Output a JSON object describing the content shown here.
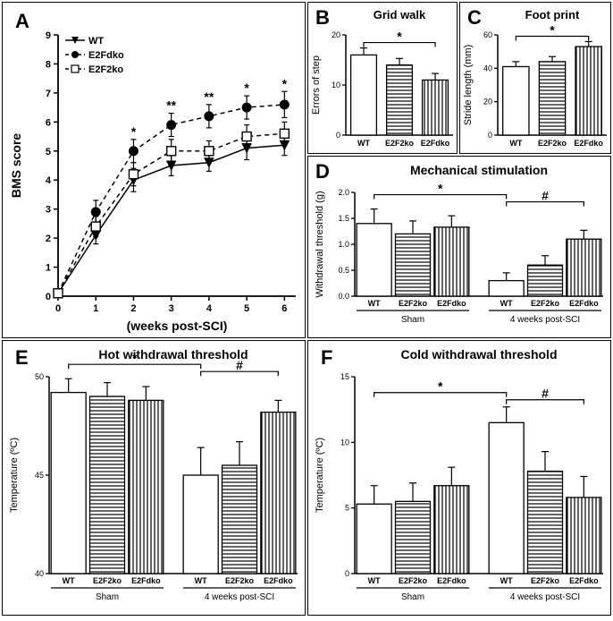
{
  "panelA": {
    "label": "A",
    "type": "line",
    "title": "",
    "xlabel": "(weeks post-SCI)",
    "ylabel": "BMS score",
    "xlim": [
      0,
      6.3
    ],
    "ylim": [
      0,
      9
    ],
    "xtick_step": 1,
    "ytick_step": 1,
    "xticks": [
      "0",
      "1",
      "2",
      "3",
      "4",
      "5",
      "6"
    ],
    "yticks": [
      "0",
      "1",
      "2",
      "3",
      "4",
      "5",
      "6",
      "7",
      "8",
      "9"
    ],
    "label_fontsize": 14,
    "tick_fontsize": 11,
    "background_color": "#ffffff",
    "series": [
      {
        "name": "WT",
        "marker": "triangle-down",
        "dash": "solid",
        "color": "#000000",
        "points": [
          [
            0,
            0.1
          ],
          [
            1,
            2.1
          ],
          [
            2,
            4.0
          ],
          [
            3,
            4.5
          ],
          [
            4,
            4.6
          ],
          [
            5,
            5.1
          ],
          [
            6,
            5.2
          ]
        ],
        "err": [
          0,
          0.3,
          0.4,
          0.35,
          0.3,
          0.4,
          0.35
        ]
      },
      {
        "name": "E2Fdko",
        "marker": "circle",
        "dash": "dash",
        "color": "#000000",
        "points": [
          [
            0,
            0.1
          ],
          [
            1,
            2.9
          ],
          [
            2,
            5.0
          ],
          [
            3,
            5.9
          ],
          [
            4,
            6.2
          ],
          [
            5,
            6.5
          ],
          [
            6,
            6.6
          ]
        ],
        "err": [
          0,
          0.4,
          0.4,
          0.4,
          0.4,
          0.4,
          0.45
        ]
      },
      {
        "name": "E2F2ko",
        "marker": "square-open",
        "dash": "dash",
        "color": "#000000",
        "points": [
          [
            0,
            0.1
          ],
          [
            1,
            2.4
          ],
          [
            2,
            4.2
          ],
          [
            3,
            5.0
          ],
          [
            4,
            5.0
          ],
          [
            5,
            5.5
          ],
          [
            6,
            5.6
          ]
        ],
        "err": [
          0,
          0.35,
          0.4,
          0.4,
          0.35,
          0.4,
          0.4
        ]
      }
    ],
    "legend": {
      "items": [
        "WT",
        "E2Fdko",
        "E2F2ko"
      ],
      "fontsize": 11,
      "pos": "top-left-inside"
    },
    "annotations": [
      {
        "x": 2,
        "text": "*"
      },
      {
        "x": 3,
        "text": "**"
      },
      {
        "x": 4,
        "text": "**"
      },
      {
        "x": 5,
        "text": "*"
      },
      {
        "x": 6,
        "text": "*"
      }
    ],
    "line_width": 1.5,
    "marker_size": 5
  },
  "panelB": {
    "label": "B",
    "type": "bar",
    "title": "Grid walk",
    "ylabel": "Errors of step",
    "ylim": [
      0,
      20
    ],
    "ytick_step": 10,
    "yticks": [
      "0",
      "10",
      "20"
    ],
    "categories": [
      "WT",
      "E2F2ko",
      "E2Fdko"
    ],
    "values": [
      16,
      14,
      11
    ],
    "err": [
      1.4,
      1.3,
      1.3
    ],
    "fills": [
      "white",
      "hstripe",
      "vstripe"
    ],
    "bar_border": "#000000",
    "bracket": {
      "from": 0,
      "to": 2,
      "text": "*"
    },
    "title_fontsize": 13,
    "label_fontsize": 11,
    "tick_fontsize": 9
  },
  "panelC": {
    "label": "C",
    "type": "bar",
    "title": "Foot print",
    "ylabel": "Stride length (mm)",
    "ylim": [
      0,
      60
    ],
    "ytick_step": 20,
    "yticks": [
      "0",
      "20",
      "40",
      "60"
    ],
    "categories": [
      "WT",
      "E2F2ko",
      "E2Fdko"
    ],
    "values": [
      41,
      44,
      53
    ],
    "err": [
      3,
      3,
      3
    ],
    "fills": [
      "white",
      "hstripe",
      "vstripe"
    ],
    "bar_border": "#000000",
    "bracket": {
      "from": 0,
      "to": 2,
      "text": "*"
    },
    "title_fontsize": 13,
    "label_fontsize": 11,
    "tick_fontsize": 9
  },
  "panelD": {
    "label": "D",
    "type": "grouped-bar",
    "title": "Mechanical stimulation",
    "ylabel": "Withdrawal threshold (g)",
    "ylim": [
      0,
      2.0
    ],
    "ytick_step": 0.5,
    "yticks": [
      "0.0",
      "0.5",
      "1.0",
      "1.5",
      "2.0"
    ],
    "groups": [
      "Sham",
      "4 weeks post-SCI"
    ],
    "categories": [
      "WT",
      "E2F2ko",
      "E2Fdko"
    ],
    "values": [
      [
        1.4,
        1.2,
        1.33
      ],
      [
        0.3,
        0.6,
        1.1
      ]
    ],
    "err": [
      [
        0.28,
        0.25,
        0.22
      ],
      [
        0.15,
        0.18,
        0.17
      ]
    ],
    "fills": [
      "white",
      "hstripe",
      "vstripe"
    ],
    "bar_border": "#000000",
    "brackets": [
      {
        "fromGroup": 0,
        "fromCat": 0,
        "toGroup": 1,
        "toCat": 0,
        "text": "*"
      },
      {
        "fromGroup": 1,
        "fromCat": 0,
        "toGroup": 1,
        "toCat": 2,
        "text": "#"
      }
    ],
    "title_fontsize": 14,
    "label_fontsize": 11,
    "tick_fontsize": 9
  },
  "panelE": {
    "label": "E",
    "type": "grouped-bar",
    "title": "Hot withdrawal threshold",
    "ylabel": "Temperature (ºC)",
    "ylim": [
      40,
      50
    ],
    "ytick_step": 5,
    "yticks": [
      "40",
      "45",
      "50"
    ],
    "groups": [
      "Sham",
      "4 weeks post-SCI"
    ],
    "categories": [
      "WT",
      "E2F2ko",
      "E2Fdko"
    ],
    "values": [
      [
        49.2,
        49.0,
        48.8
      ],
      [
        45.0,
        45.5,
        48.2
      ]
    ],
    "err": [
      [
        0.7,
        0.7,
        0.7
      ],
      [
        1.4,
        1.2,
        0.6
      ]
    ],
    "fills": [
      "white",
      "hstripe",
      "vstripe"
    ],
    "bar_border": "#000000",
    "brackets": [
      {
        "fromGroup": 0,
        "fromCat": 0,
        "toGroup": 1,
        "toCat": 0,
        "text": "*"
      },
      {
        "fromGroup": 1,
        "fromCat": 0,
        "toGroup": 1,
        "toCat": 2,
        "text": "#"
      }
    ],
    "title_fontsize": 14,
    "label_fontsize": 11,
    "tick_fontsize": 9
  },
  "panelF": {
    "label": "F",
    "type": "grouped-bar",
    "title": "Cold withdrawal threshold",
    "ylabel": "Temperature (ºC)",
    "ylim": [
      0,
      15
    ],
    "ytick_step": 5,
    "yticks": [
      "0",
      "5",
      "10",
      "15"
    ],
    "groups": [
      "Sham",
      "4 weeks post-SCI"
    ],
    "categories": [
      "WT",
      "E2F2ko",
      "E2Fdko"
    ],
    "values": [
      [
        5.3,
        5.5,
        6.7
      ],
      [
        11.5,
        7.8,
        5.8
      ]
    ],
    "err": [
      [
        1.4,
        1.4,
        1.4
      ],
      [
        1.2,
        1.5,
        1.6
      ]
    ],
    "fills": [
      "white",
      "hstripe",
      "vstripe"
    ],
    "bar_border": "#000000",
    "brackets": [
      {
        "fromGroup": 0,
        "fromCat": 0,
        "toGroup": 1,
        "toCat": 0,
        "text": "*"
      },
      {
        "fromGroup": 1,
        "fromCat": 0,
        "toGroup": 1,
        "toCat": 2,
        "text": "#"
      }
    ],
    "title_fontsize": 14,
    "label_fontsize": 11,
    "tick_fontsize": 9
  },
  "colors": {
    "line": "#000000",
    "text": "#000000",
    "background": "#ffffff"
  }
}
